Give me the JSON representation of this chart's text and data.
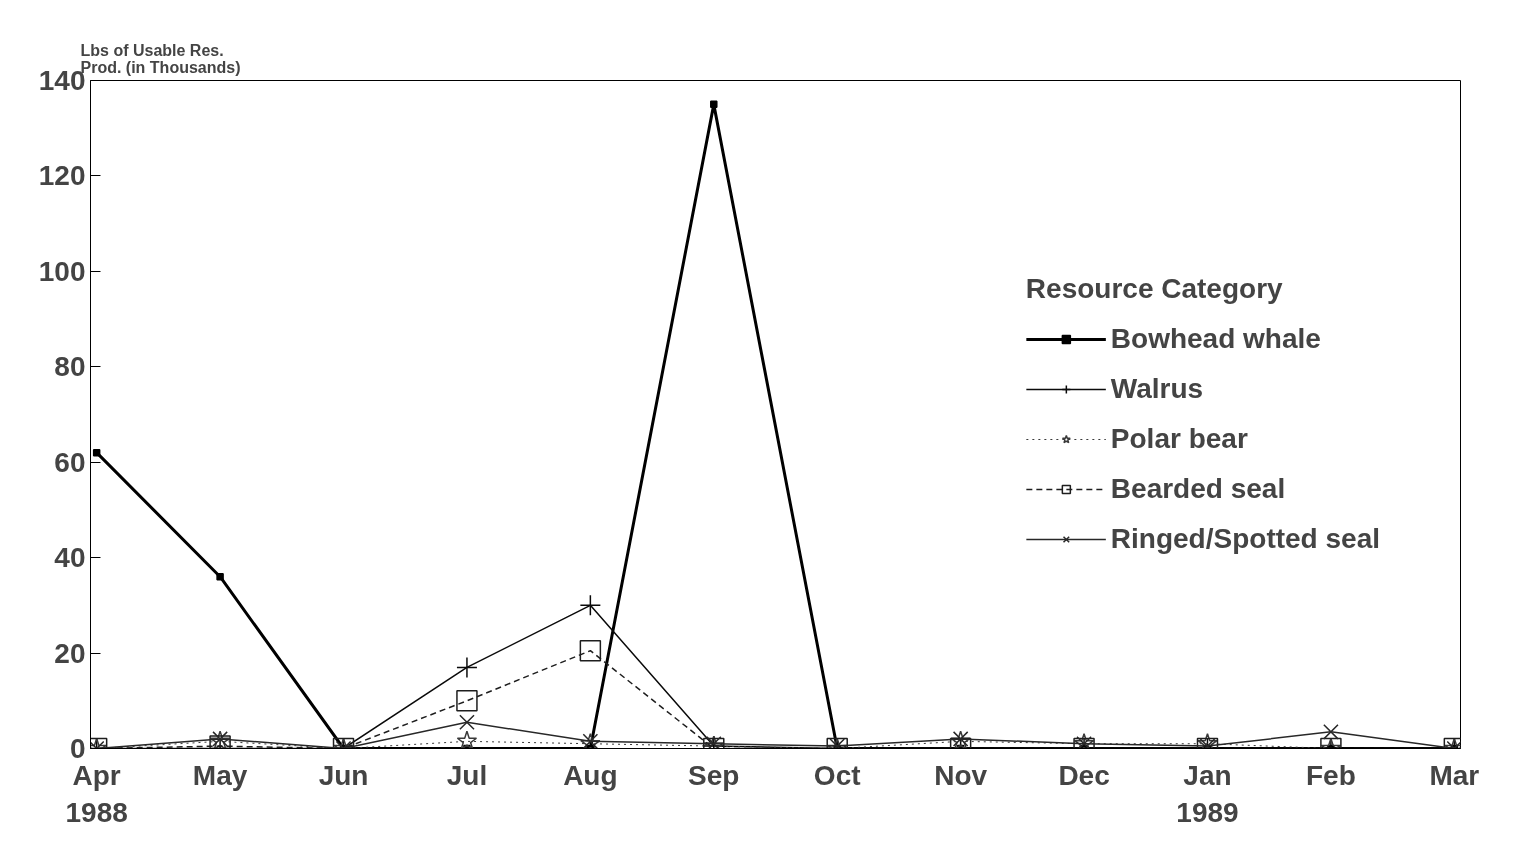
{
  "chart_data": {
    "type": "line",
    "ylabel": "Lbs of Usable Res.\nProd. (in Thousands)",
    "legend_title": "Resource Category",
    "categories": [
      "Apr\n1988",
      "May",
      "Jun",
      "Jul",
      "Aug",
      "Sep",
      "Oct",
      "Nov",
      "Dec",
      "Jan\n1989",
      "Feb",
      "Mar"
    ],
    "ylim": [
      0,
      140
    ],
    "yticks": [
      0,
      20,
      40,
      60,
      80,
      100,
      120,
      140
    ],
    "grid": false,
    "legend": "right",
    "series": [
      {
        "name": "Bowhead whale",
        "color": "#000000",
        "marker": "square",
        "line_style": "solid",
        "values": [
          62,
          36,
          0,
          0,
          0,
          135,
          0,
          0,
          0,
          0,
          0,
          0
        ]
      },
      {
        "name": "Walrus",
        "color": "#0a0a0a",
        "marker": "cross",
        "line_style": "solid",
        "values": [
          0,
          0,
          0,
          17,
          30,
          0.5,
          0,
          0,
          0,
          0,
          0,
          0
        ]
      },
      {
        "name": "Polar bear",
        "color": "#3a3a3a",
        "marker": "star",
        "line_style": "dotted",
        "values": [
          0,
          1.5,
          0,
          1.5,
          1,
          0.5,
          0,
          1.5,
          1,
          1,
          0,
          0
        ]
      },
      {
        "name": "Bearded seal",
        "color": "#1e1e1e",
        "marker": "square",
        "line_style": "dashed",
        "values": [
          0,
          0.5,
          0,
          10,
          20.5,
          0,
          0,
          0,
          0,
          0,
          0,
          0
        ]
      },
      {
        "name": "Ringed/Spotted seal",
        "color": "#282828",
        "marker": "x",
        "line_style": "solid",
        "values": [
          0,
          2,
          0,
          5.5,
          1.5,
          1,
          0.5,
          2,
          1,
          0.5,
          3.5,
          0
        ]
      }
    ]
  }
}
